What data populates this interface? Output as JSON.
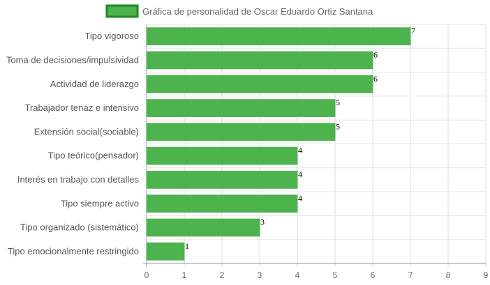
{
  "chart_data": {
    "type": "bar",
    "orientation": "horizontal",
    "title": "",
    "xlabel": "",
    "ylabel": "",
    "categories": [
      "Tipo vigoroso",
      "Toma de decisiones/impulsividad",
      "Actividad de liderazgo",
      "Trabajador tenaz e intensivo",
      "Extensión social(sociable)",
      "Tipo teórico(pensador)",
      "Interés en trabajo con detalles",
      "Tipo siempre activo",
      "Tipo organizado (sistemático)",
      "Tipo emocionalmente restringido"
    ],
    "series": [
      {
        "name": "Gráfica de personalidad de Oscar Eduardo Ortiz Santana",
        "values": [
          7,
          6,
          6,
          5,
          5,
          4,
          4,
          4,
          3,
          1
        ],
        "color": "#4db34d",
        "border_color": "#1f8a1f"
      }
    ],
    "xlim": [
      0,
      9
    ],
    "x_ticks": [
      0,
      1,
      2,
      3,
      4,
      5,
      6,
      7,
      8,
      9
    ],
    "grid": true,
    "legend": "top-center",
    "data_labels": true
  }
}
